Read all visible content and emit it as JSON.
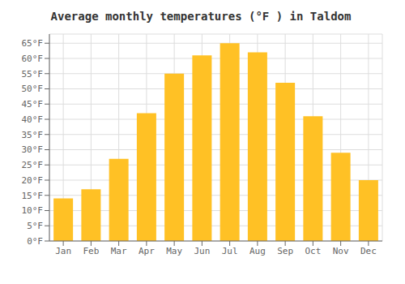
{
  "chart_data": {
    "type": "bar",
    "title": "Average monthly temperatures (°F ) in Taldom",
    "categories": [
      "Jan",
      "Feb",
      "Mar",
      "Apr",
      "May",
      "Jun",
      "Jul",
      "Aug",
      "Sep",
      "Oct",
      "Nov",
      "Dec"
    ],
    "values": [
      14,
      17,
      27,
      42,
      55,
      61,
      65,
      62,
      52,
      41,
      29,
      20
    ],
    "color": "#FFC125",
    "ylim": [
      0,
      68
    ],
    "yticks": [
      {
        "value": 0,
        "label": "0°F"
      },
      {
        "value": 5,
        "label": "5°F"
      },
      {
        "value": 10,
        "label": "10°F"
      },
      {
        "value": 15,
        "label": "15°F"
      },
      {
        "value": 20,
        "label": "20°F"
      },
      {
        "value": 25,
        "label": "25°F"
      },
      {
        "value": 30,
        "label": "30°F"
      },
      {
        "value": 35,
        "label": "35°F"
      },
      {
        "value": 40,
        "label": "40°F"
      },
      {
        "value": 45,
        "label": "45°F"
      },
      {
        "value": 50,
        "label": "50°F"
      },
      {
        "value": 55,
        "label": "55°F"
      },
      {
        "value": 60,
        "label": "60°F"
      },
      {
        "value": 65,
        "label": "65°F"
      }
    ],
    "grid": true
  }
}
